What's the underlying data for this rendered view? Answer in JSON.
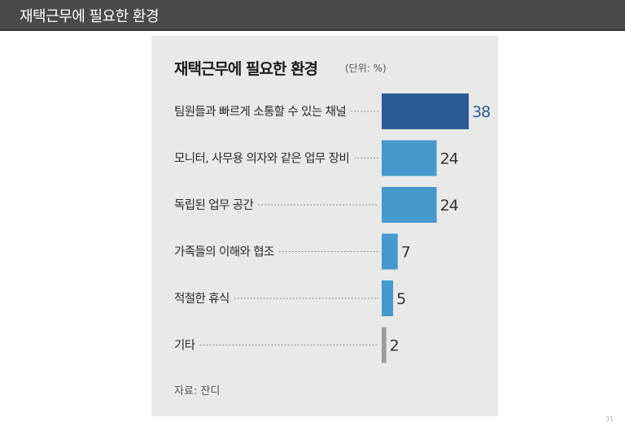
{
  "header": {
    "title": "재택근무에 필요한 환경"
  },
  "panel": {
    "title": "재택근무에 필요한 환경",
    "unit": "(단위: %)",
    "source": "자료: 잔디"
  },
  "page_number": "31",
  "colors": {
    "dark_blue": "#2b5c96",
    "light_blue": "#4599cd",
    "gray": "#9a9a9a"
  },
  "chart_data": {
    "type": "bar",
    "orientation": "horizontal",
    "title": "재택근무에 필요한 환경",
    "unit": "%",
    "categories": [
      "팀원들과 빠르게 소통할 수 있는 채널",
      "모니터, 사무용 의자와 같은 업무 장비",
      "독립된 업무 공간",
      "가족들의 이해와 협조",
      "적절한 휴식",
      "기타"
    ],
    "values": [
      38,
      24,
      24,
      7,
      5,
      2
    ],
    "bar_colors": [
      "#2b5c96",
      "#4599cd",
      "#4599cd",
      "#4599cd",
      "#4599cd",
      "#9a9a9a"
    ],
    "value_colors": [
      "#2b5c96",
      "#333333",
      "#333333",
      "#333333",
      "#333333",
      "#333333"
    ],
    "xlim": [
      0,
      38
    ],
    "grid": false,
    "legend": "none"
  }
}
